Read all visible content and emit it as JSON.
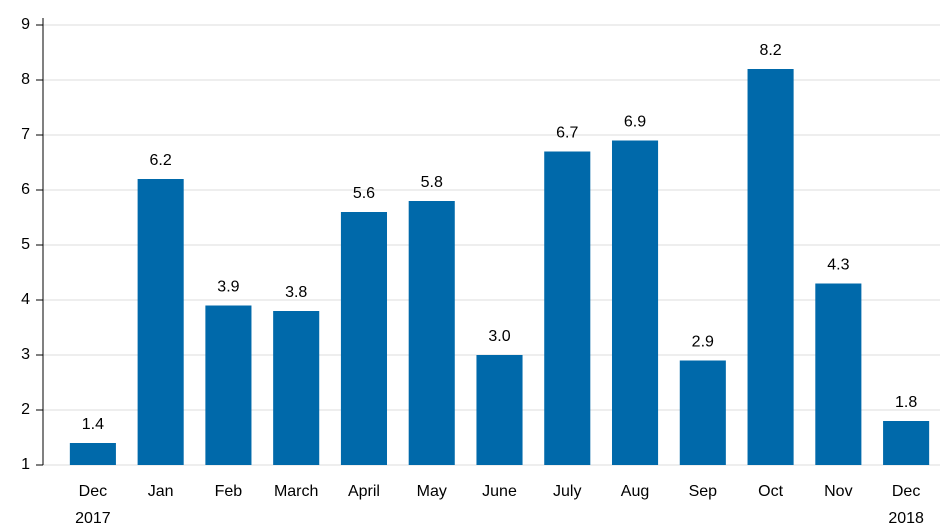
{
  "chart_data": {
    "type": "bar",
    "categories": [
      "Dec 2017",
      "Jan",
      "Feb",
      "March",
      "April",
      "May",
      "June",
      "July",
      "Aug",
      "Sep",
      "Oct",
      "Nov",
      "Dec 2018"
    ],
    "values": [
      1.4,
      6.2,
      3.9,
      3.8,
      5.6,
      5.8,
      3.0,
      6.7,
      6.9,
      2.9,
      8.2,
      4.3,
      1.8
    ],
    "value_labels": [
      "1.4",
      "6.2",
      "3.9",
      "3.8",
      "5.6",
      "5.8",
      "3.0",
      "6.7",
      "6.9",
      "2.9",
      "8.2",
      "4.3",
      "1.8"
    ],
    "color": "#0069aa",
    "ylim": [
      1,
      9
    ],
    "yticks": [
      1,
      2,
      3,
      4,
      5,
      6,
      7,
      8,
      9
    ],
    "grid": true
  }
}
